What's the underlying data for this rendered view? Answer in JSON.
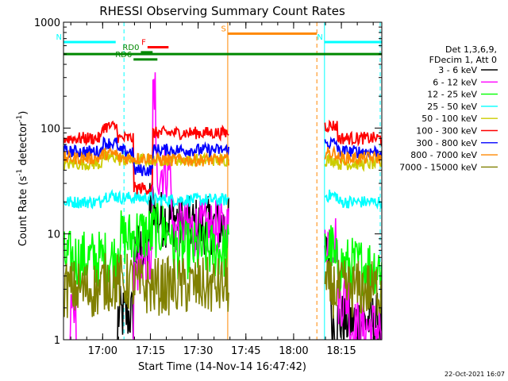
{
  "chart_data": {
    "type": "line",
    "title": "RHESSI Observing Summary Count Rates",
    "xlabel": "Start Time (14-Nov-14 16:47:42)",
    "ylabel_main": "Count Rate (s",
    "ylabel_sup1": "-1",
    "ylabel_mid": " detector",
    "ylabel_sup2": "-1",
    "ylabel_end": ")",
    "yscale": "log",
    "ylim": [
      1,
      1000
    ],
    "xlim_minutes": [
      0,
      100
    ],
    "x_ticks": [
      {
        "label": "17:00",
        "t": 12.3
      },
      {
        "label": "17:15",
        "t": 27.3
      },
      {
        "label": "17:30",
        "t": 42.3
      },
      {
        "label": "17:45",
        "t": 57.3
      },
      {
        "label": "18:00",
        "t": 72.3
      },
      {
        "label": "18:15",
        "t": 87.3
      }
    ],
    "y_ticks": [
      {
        "label": "1",
        "v": 1
      },
      {
        "label": "10",
        "v": 10
      },
      {
        "label": "100",
        "v": 100
      },
      {
        "label": "1000",
        "v": 1000
      }
    ],
    "legend_header": [
      "Det 1,3,6,9,",
      "FDecim 1, Att 0"
    ],
    "series": [
      {
        "name": "3 - 6 keV",
        "color": "#000000",
        "levels": [
          [
            0,
            0.6
          ],
          [
            17,
            1.7
          ],
          [
            22,
            7
          ],
          [
            27,
            20
          ],
          [
            29,
            14
          ],
          [
            36,
            12
          ],
          [
            52,
            0.6
          ],
          [
            82,
            6
          ],
          [
            84,
            1.5
          ],
          [
            100,
            0.6
          ]
        ]
      },
      {
        "name": "6 - 12 keV",
        "color": "#ff00ff",
        "levels": [
          [
            0,
            0.6
          ],
          [
            2,
            1.5
          ],
          [
            4,
            0.6
          ],
          [
            15,
            0.8
          ],
          [
            22,
            5
          ],
          [
            28,
            220
          ],
          [
            29,
            40
          ],
          [
            34,
            11
          ],
          [
            52,
            0.6
          ],
          [
            82,
            9
          ],
          [
            86,
            2.5
          ],
          [
            90,
            1.3
          ],
          [
            100,
            0.6
          ]
        ]
      },
      {
        "name": "12 - 25 keV",
        "color": "#00ff00",
        "levels": [
          [
            0,
            5.8
          ],
          [
            17,
            9
          ],
          [
            22,
            10
          ],
          [
            28,
            11
          ],
          [
            34,
            7
          ],
          [
            52,
            0.6
          ],
          [
            82,
            7
          ],
          [
            85,
            5
          ],
          [
            100,
            4.8
          ]
        ]
      },
      {
        "name": "25 - 50 keV",
        "color": "#00ffff",
        "levels": [
          [
            0,
            20
          ],
          [
            12,
            23
          ],
          [
            17,
            22
          ],
          [
            28,
            21
          ],
          [
            52,
            0.6
          ],
          [
            82,
            23
          ],
          [
            86,
            20
          ],
          [
            100,
            18
          ]
        ]
      },
      {
        "name": "50 - 100 keV",
        "color": "#cccc00",
        "levels": [
          [
            0,
            46
          ],
          [
            12,
            53
          ],
          [
            17,
            50
          ],
          [
            52,
            0.6
          ],
          [
            82,
            50
          ],
          [
            86,
            46
          ],
          [
            100,
            44
          ]
        ]
      },
      {
        "name": "100 - 300 keV",
        "color": "#ff0000",
        "levels": [
          [
            0,
            80
          ],
          [
            12,
            103
          ],
          [
            17,
            80
          ],
          [
            22,
            27
          ],
          [
            28,
            90
          ],
          [
            52,
            0.6
          ],
          [
            82,
            105
          ],
          [
            86,
            80
          ],
          [
            100,
            72
          ]
        ]
      },
      {
        "name": "300 - 800 keV",
        "color": "#0000ff",
        "levels": [
          [
            0,
            60
          ],
          [
            12,
            72
          ],
          [
            17,
            60
          ],
          [
            22,
            40
          ],
          [
            28,
            62
          ],
          [
            52,
            0.6
          ],
          [
            82,
            72
          ],
          [
            86,
            60
          ],
          [
            100,
            56
          ]
        ]
      },
      {
        "name": "800 - 7000 keV",
        "color": "#ff8800",
        "levels": [
          [
            0,
            52
          ],
          [
            12,
            57
          ],
          [
            17,
            52
          ],
          [
            28,
            50
          ],
          [
            52,
            0.6
          ],
          [
            82,
            58
          ],
          [
            86,
            52
          ],
          [
            100,
            48
          ]
        ]
      },
      {
        "name": "7000 - 15000 keV",
        "color": "#808000",
        "levels": [
          [
            0,
            3
          ],
          [
            12,
            3.5
          ],
          [
            22,
            3.2
          ],
          [
            52,
            0.6
          ],
          [
            82,
            3
          ],
          [
            100,
            2.8
          ]
        ]
      }
    ],
    "annotations": [
      {
        "label": "N",
        "color": "#00ffff",
        "t0": 0,
        "t1": 16.4,
        "v": 650
      },
      {
        "label": "N",
        "color": "#00ffff",
        "t0": 82,
        "t1": 100,
        "v": 650
      },
      {
        "label": "S",
        "color": "#ff8800",
        "t0": 51.6,
        "t1": 79.6,
        "v": 780
      },
      {
        "label": "F",
        "color": "#ff0000",
        "t0": 26.4,
        "t1": 33,
        "v": 580
      },
      {
        "label": "RD0",
        "color": "#008800",
        "t0": 24.3,
        "t1": 28,
        "v": 520
      },
      {
        "label": "RD6",
        "color": "#008800",
        "t0": 22,
        "t1": 29.5,
        "v": 445
      },
      {
        "label": "",
        "color": "#008800",
        "t0": 0,
        "t1": 100,
        "v": 500
      }
    ],
    "vlines": [
      {
        "t": 19.0,
        "color": "#00ffff",
        "style": "dashed"
      },
      {
        "t": 82.0,
        "color": "#00ffff",
        "style": "solid"
      },
      {
        "t": 99.5,
        "color": "#00ffff",
        "style": "dashed"
      },
      {
        "t": 51.6,
        "color": "#ff8800",
        "style": "solid"
      },
      {
        "t": 79.6,
        "color": "#ff8800",
        "style": "dashed"
      }
    ],
    "data_gap": {
      "t0": 52,
      "t1": 82
    },
    "footer_date": "22-Oct-2021 16:07"
  }
}
